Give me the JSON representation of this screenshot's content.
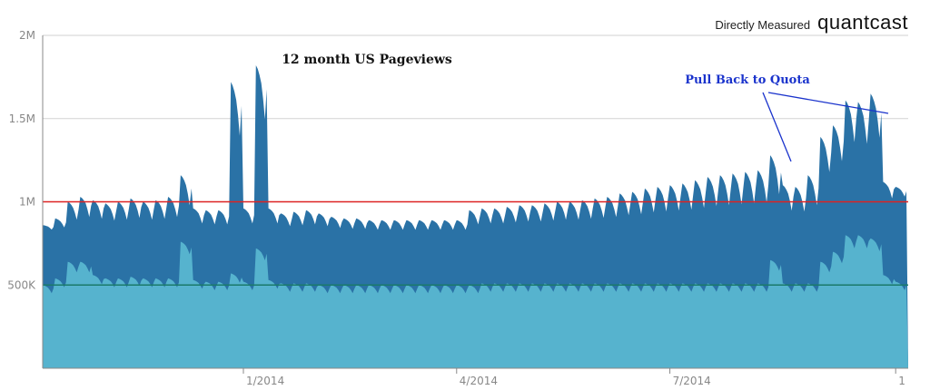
{
  "header": {
    "directly_measured": "Directly Measured",
    "brand": "quantcast"
  },
  "chart_data": {
    "type": "area",
    "title": "12 month US Pageviews",
    "xlabel": "",
    "ylabel": "",
    "ylim": [
      0,
      2000000
    ],
    "grid": true,
    "y_ticks": [
      {
        "value": 500000,
        "label": "500K"
      },
      {
        "value": 1000000,
        "label": "1M"
      },
      {
        "value": 1500000,
        "label": "1.5M"
      },
      {
        "value": 2000000,
        "label": "2M"
      }
    ],
    "x_ticks": [
      {
        "week": 16,
        "label": "1/2014"
      },
      {
        "week": 33,
        "label": "4/2014"
      },
      {
        "week": 50,
        "label": "7/2014"
      },
      {
        "week": 68,
        "label": "1"
      }
    ],
    "series_total_weekly_peaks": [
      860,
      900,
      1000,
      1030,
      1010,
      990,
      1000,
      1020,
      1000,
      1010,
      1030,
      1160,
      960,
      950,
      950,
      1720,
      960,
      1820,
      960,
      930,
      940,
      950,
      930,
      910,
      900,
      900,
      890,
      890,
      890,
      890,
      890,
      890,
      890,
      890,
      950,
      960,
      960,
      970,
      980,
      980,
      990,
      1000,
      1000,
      1010,
      1020,
      1030,
      1050,
      1060,
      1080,
      1090,
      1100,
      1110,
      1130,
      1150,
      1160,
      1170,
      1180,
      1190,
      1280,
      1100,
      1090,
      1160,
      1390,
      1460,
      1610,
      1600,
      1650,
      1120,
      1090
    ],
    "series_total_weekly_troughs": [
      800,
      780,
      760,
      760,
      760,
      760,
      760,
      760,
      760,
      760,
      760,
      760,
      760,
      760,
      760,
      1000,
      760,
      1100,
      760,
      760,
      760,
      760,
      760,
      760,
      760,
      760,
      760,
      760,
      760,
      760,
      760,
      760,
      760,
      760,
      760,
      760,
      760,
      760,
      760,
      760,
      760,
      760,
      760,
      760,
      760,
      760,
      760,
      760,
      760,
      760,
      760,
      760,
      760,
      760,
      760,
      760,
      760,
      760,
      760,
      760,
      760,
      760,
      920,
      980,
      1050,
      1040,
      1060,
      900,
      960
    ],
    "series_lower_weekly_peaks": [
      500,
      540,
      640,
      640,
      560,
      540,
      540,
      550,
      540,
      540,
      540,
      760,
      530,
      520,
      520,
      570,
      520,
      720,
      530,
      510,
      510,
      510,
      500,
      500,
      500,
      500,
      500,
      500,
      500,
      500,
      500,
      500,
      500,
      500,
      500,
      510,
      510,
      510,
      510,
      510,
      510,
      510,
      510,
      510,
      510,
      510,
      510,
      510,
      510,
      510,
      510,
      510,
      510,
      510,
      510,
      510,
      510,
      510,
      650,
      510,
      510,
      510,
      640,
      700,
      800,
      800,
      780,
      560,
      520
    ],
    "reference_lines": [
      {
        "value": 1000000,
        "color": "#dd2222"
      },
      {
        "value": 500000,
        "color": "#1a7a6a"
      }
    ],
    "annotation": {
      "text": "Pull Back to Quota",
      "color": "#1a33cc"
    },
    "colors": {
      "total_fill": "#2a72a6",
      "lower_fill": "#56b3ce",
      "gridline": "#d2d2d2",
      "axis": "#888888"
    }
  }
}
